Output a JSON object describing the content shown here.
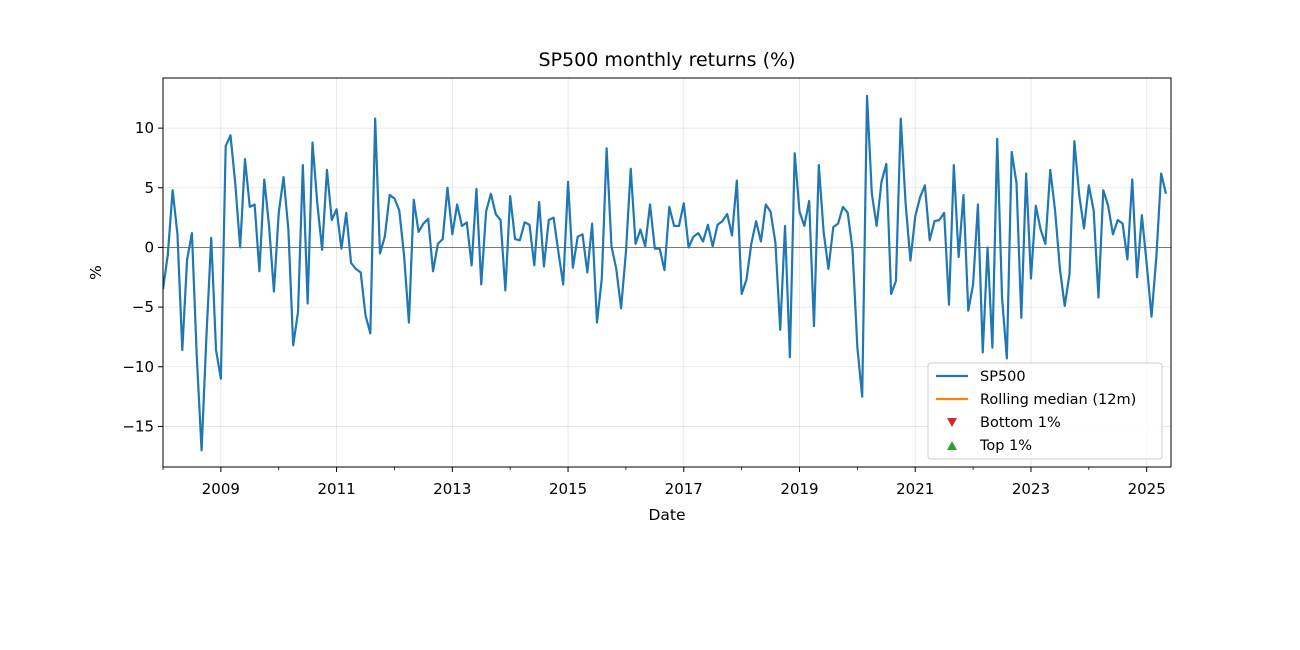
{
  "chart_data": {
    "type": "line",
    "title": "SP500 monthly returns (%)",
    "xlabel": "Date",
    "ylabel": "%",
    "xlim": [
      2008.0,
      2025.42
    ],
    "ylim": [
      -18.4,
      14.2
    ],
    "x_ticks": [
      2009,
      2011,
      2013,
      2015,
      2017,
      2019,
      2021,
      2023,
      2025
    ],
    "x_tick_labels": [
      "2009",
      "2011",
      "2013",
      "2015",
      "2017",
      "2019",
      "2021",
      "2023",
      "2025"
    ],
    "y_ticks": [
      10,
      5,
      0,
      -5,
      -10,
      -15
    ],
    "y_tick_labels": [
      "10",
      "5",
      "0",
      "−5",
      "−10",
      "−15"
    ],
    "grid": true,
    "zero_line": true,
    "legend_position": "lower right",
    "x_start": "2008-01",
    "series": [
      {
        "name": "SP500",
        "color": "#1f77b4",
        "values": [
          -3.5,
          -0.6,
          4.8,
          1.1,
          -8.6,
          -1.0,
          1.2,
          -9.1,
          -17.0,
          -7.5,
          0.8,
          -8.6,
          -11.0,
          8.5,
          9.4,
          5.3,
          0.0,
          7.4,
          3.4,
          3.6,
          -2.0,
          5.7,
          1.8,
          -3.7,
          2.9,
          5.9,
          1.5,
          -8.2,
          -5.4,
          6.9,
          -4.7,
          8.8,
          3.7,
          -0.2,
          6.5,
          2.3,
          3.2,
          -0.1,
          2.9,
          -1.3,
          -1.8,
          -2.1,
          -5.7,
          -7.2,
          10.8,
          -0.5,
          0.9,
          4.4,
          4.1,
          3.1,
          -0.7,
          -6.3,
          4.0,
          1.3,
          2.0,
          2.4,
          -2.0,
          0.3,
          0.7,
          5.0,
          1.1,
          3.6,
          1.8,
          2.1,
          -1.5,
          4.9,
          -3.1,
          3.0,
          4.5,
          2.8,
          2.3,
          -3.6,
          4.3,
          0.7,
          0.6,
          2.1,
          1.9,
          -1.5,
          3.8,
          -1.6,
          2.3,
          2.5,
          -0.4,
          -3.1,
          5.5,
          -1.7,
          0.9,
          1.1,
          -2.1,
          2.0,
          -6.3,
          -2.6,
          8.3,
          0.1,
          -1.8,
          -5.1,
          -0.4,
          6.6,
          0.3,
          1.5,
          0.1,
          3.6,
          -0.1,
          -0.1,
          -1.9,
          3.4,
          1.8,
          1.8,
          3.7,
          0.0,
          0.9,
          1.2,
          0.5,
          1.9,
          0.1,
          1.9,
          2.2,
          2.8,
          1.0,
          5.6,
          -3.9,
          -2.7,
          0.3,
          2.2,
          0.5,
          3.6,
          3.0,
          0.4,
          -6.9,
          1.8,
          -9.2,
          7.9,
          3.0,
          1.8,
          3.9,
          -6.6,
          6.9,
          1.3,
          -1.8,
          1.7,
          2.0,
          3.4,
          2.9,
          -0.2,
          -8.4,
          -12.5,
          12.7,
          4.5,
          1.8,
          5.5,
          7.0,
          -3.9,
          -2.8,
          10.8,
          3.7,
          -1.1,
          2.6,
          4.2,
          5.2,
          0.6,
          2.2,
          2.3,
          2.9,
          -4.8,
          6.9,
          -0.8,
          4.4,
          -5.3,
          -3.1,
          3.6,
          -8.8,
          0.0,
          -8.4,
          9.1,
          -4.2,
          -9.3,
          8.0,
          5.4,
          -5.9,
          6.2,
          -2.6,
          3.5,
          1.5,
          0.3,
          6.5,
          3.1,
          -1.8,
          -4.9,
          -2.2,
          8.9,
          4.4,
          1.6,
          5.2,
          3.1,
          -4.2,
          4.8,
          3.5,
          1.1,
          2.3,
          2.0,
          -1.0,
          5.7,
          -2.5,
          2.7,
          -1.4,
          -5.8,
          -0.8,
          6.2,
          4.5
        ]
      },
      {
        "name": "Rolling median (12m)",
        "color": "#ff7f0e",
        "values": []
      },
      {
        "name": "Bottom 1%",
        "color": "#d62728",
        "marker": "triangle-down",
        "values": []
      },
      {
        "name": "Top 1%",
        "color": "#2ca02c",
        "marker": "triangle-up",
        "values": []
      }
    ]
  }
}
